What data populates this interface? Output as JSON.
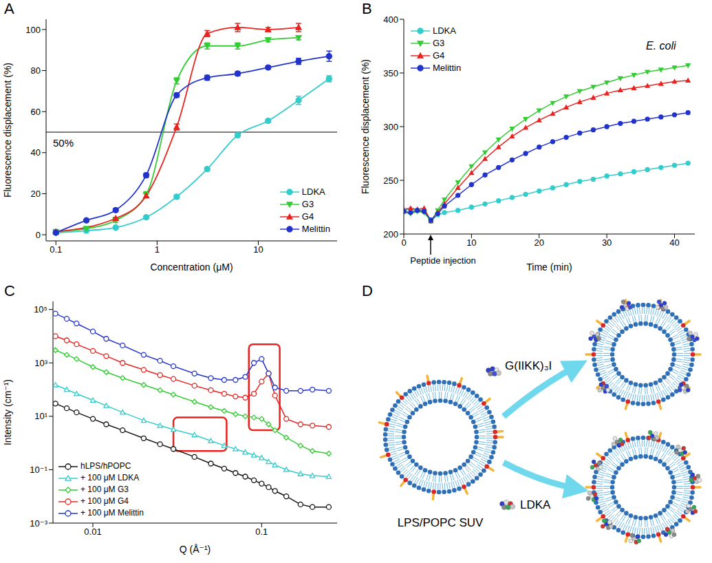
{
  "chart_data": [
    {
      "panel": "A",
      "type": "line",
      "x_label": "Concentration (μM)",
      "y_label": "Fluorescence displacement (%)",
      "log": "x",
      "xlim": [
        0.08,
        60
      ],
      "xticks": [
        0.1,
        1,
        10
      ],
      "ylim": [
        -3,
        105
      ],
      "yticks": [
        0,
        20,
        40,
        60,
        80,
        100
      ],
      "legend": "lower right",
      "reference_line": {
        "value": 50,
        "label": "50%"
      },
      "series": [
        {
          "name": "LDKA",
          "color": "#33cccc",
          "marker": "circle",
          "x": [
            0.1,
            0.2,
            0.39,
            0.78,
            1.56,
            3.125,
            6.25,
            12.5,
            25,
            50
          ],
          "values": [
            1,
            2,
            3.5,
            8.5,
            18.5,
            32,
            48.5,
            55.5,
            65.5,
            76
          ],
          "errors": [
            0.3,
            0.4,
            0.5,
            0.6,
            1,
            0.8,
            1,
            0.8,
            2,
            1.5
          ]
        },
        {
          "name": "G3",
          "color": "#33cc33",
          "marker": "triangle-down",
          "x": [
            0.1,
            0.2,
            0.39,
            0.78,
            1.56,
            3.125,
            6.25,
            12.5,
            25
          ],
          "values": [
            1.5,
            3,
            7,
            19.5,
            75,
            92,
            92,
            95,
            96
          ],
          "errors": [
            0.5,
            0.5,
            1,
            1.5,
            1.5,
            1.5,
            1.5,
            1,
            1
          ]
        },
        {
          "name": "G4",
          "color": "#e8231f",
          "marker": "triangle",
          "x": [
            0.1,
            0.39,
            0.78,
            1.56,
            3.125,
            6.25,
            12.5,
            25
          ],
          "values": [
            1.5,
            8,
            19,
            52.5,
            98,
            101,
            100,
            101
          ],
          "errors": [
            0.5,
            0.5,
            1,
            1.5,
            1.5,
            2,
            1,
            2
          ]
        },
        {
          "name": "Melittin",
          "color": "#2233cc",
          "marker": "circle",
          "x": [
            0.1,
            0.2,
            0.39,
            0.78,
            1.56,
            3.125,
            6.25,
            12.5,
            25,
            50
          ],
          "values": [
            1,
            7,
            12,
            29,
            68,
            76.5,
            78.5,
            81.5,
            84.5,
            87
          ],
          "errors": [
            0.3,
            0.5,
            0.8,
            1,
            1,
            1.2,
            1,
            0.8,
            1.5,
            2.5
          ]
        }
      ]
    },
    {
      "panel": "B",
      "type": "line",
      "x_label": "Time (min)",
      "y_label": "Fluorescence displacement (%)",
      "xlim": [
        0,
        43
      ],
      "xticks": [
        0,
        10,
        20,
        30,
        40
      ],
      "ylim": [
        200,
        400
      ],
      "yticks": [
        200,
        250,
        300,
        350,
        400
      ],
      "legend": "upper left",
      "annotations": [
        {
          "text": "E. coli",
          "x": 38,
          "y": 372
        },
        {
          "text": "Peptide injection",
          "x": 4
        }
      ],
      "x": [
        0,
        1,
        2,
        3,
        4,
        5,
        6,
        8,
        10,
        12,
        14,
        16,
        18,
        20,
        22,
        24,
        26,
        28,
        30,
        32,
        34,
        36,
        38,
        40,
        42
      ],
      "series": [
        {
          "name": "LDKA",
          "color": "#33cccc",
          "marker": "circle",
          "values": [
            222,
            223,
            222,
            222,
            212,
            218,
            220,
            222,
            225,
            228,
            231,
            234,
            237,
            240,
            243,
            246,
            249,
            251,
            254,
            256,
            258,
            260,
            262,
            264,
            266
          ]
        },
        {
          "name": "G3",
          "color": "#33cc33",
          "marker": "triangle-down",
          "values": [
            220,
            219,
            221,
            220,
            212,
            222,
            232,
            248,
            263,
            276,
            288,
            298,
            307,
            315,
            322,
            328,
            333,
            337,
            341,
            345,
            348,
            351,
            353,
            355,
            357
          ]
        },
        {
          "name": "G4",
          "color": "#e8231f",
          "marker": "triangle",
          "values": [
            223,
            224,
            223,
            224,
            212,
            220,
            228,
            243,
            257,
            270,
            281,
            291,
            299,
            306,
            312,
            318,
            323,
            327,
            331,
            334,
            336,
            338,
            340,
            342,
            343
          ]
        },
        {
          "name": "Melittin",
          "color": "#2233cc",
          "marker": "circle",
          "values": [
            221,
            220,
            222,
            221,
            213,
            219,
            226,
            236,
            246,
            255,
            262,
            269,
            275,
            281,
            286,
            290,
            294,
            297,
            300,
            303,
            305,
            307,
            309,
            311,
            313
          ]
        }
      ]
    },
    {
      "panel": "C",
      "type": "line",
      "x_label": "Q (Å⁻¹)",
      "y_label": "Intensity (cm⁻¹)",
      "log": true,
      "xlim": [
        0.0058,
        0.28
      ],
      "xticks": [
        0.01,
        0.1
      ],
      "ylim": [
        0.001,
        200000
      ],
      "yticks": [
        {
          "value": 0.001,
          "label": "10⁻³"
        },
        {
          "value": 0.1,
          "label": "10⁻¹"
        },
        {
          "value": 10,
          "label": "10¹"
        },
        {
          "value": 1000,
          "label": "10³"
        },
        {
          "value": 100000,
          "label": "10⁵"
        }
      ],
      "legend": "lower left",
      "x": [
        0.006,
        0.007,
        0.008,
        0.01,
        0.012,
        0.015,
        0.02,
        0.025,
        0.03,
        0.04,
        0.05,
        0.06,
        0.07,
        0.08,
        0.09,
        0.1,
        0.11,
        0.12,
        0.14,
        0.17,
        0.2,
        0.25
      ],
      "series": [
        {
          "name": "hLPS/hPOPC",
          "color": "#111111",
          "marker": "circle",
          "values": [
            30,
            20,
            14,
            8,
            5,
            3,
            1.5,
            0.9,
            0.6,
            0.3,
            0.17,
            0.11,
            0.075,
            0.055,
            0.04,
            0.03,
            0.022,
            0.016,
            0.01,
            0.005,
            0.004,
            0.004
          ]
        },
        {
          "name": "+ 100 μM LDKA",
          "color": "#33cccc",
          "marker": "triangle",
          "values": [
            150,
            100,
            70,
            40,
            25,
            14,
            7,
            4.5,
            3.2,
            2,
            1.2,
            0.8,
            0.6,
            0.45,
            0.35,
            0.28,
            0.2,
            0.15,
            0.1,
            0.07,
            0.06,
            0.055
          ]
        },
        {
          "name": "+ 100 μM G3",
          "color": "#33cc33",
          "marker": "diamond",
          "values": [
            3000,
            2000,
            1400,
            700,
            450,
            270,
            150,
            95,
            65,
            35,
            22,
            16,
            12,
            10,
            9,
            8,
            5,
            3,
            1.6,
            0.8,
            0.5,
            0.4
          ]
        },
        {
          "name": "+ 100 μM G4",
          "color": "#e8231f",
          "marker": "circle",
          "values": [
            10000,
            7000,
            5000,
            2800,
            1800,
            1000,
            550,
            350,
            250,
            140,
            95,
            70,
            55,
            50,
            70,
            200,
            400,
            60,
            8,
            5,
            4.5,
            4
          ]
        },
        {
          "name": "+ 100 μM Melittin",
          "color": "#2233cc",
          "marker": "circle",
          "values": [
            70000,
            45000,
            30000,
            15000,
            8000,
            4500,
            2000,
            1200,
            750,
            400,
            270,
            230,
            230,
            300,
            1000,
            1400,
            400,
            120,
            90,
            90,
            100,
            90
          ]
        }
      ]
    }
  ],
  "diagram": {
    "panel": "D",
    "vesicle_label": "LPS/POPC SUV",
    "arrows": [
      {
        "label": "G(IIKK)₃I"
      },
      {
        "label": "LDKA"
      }
    ]
  }
}
